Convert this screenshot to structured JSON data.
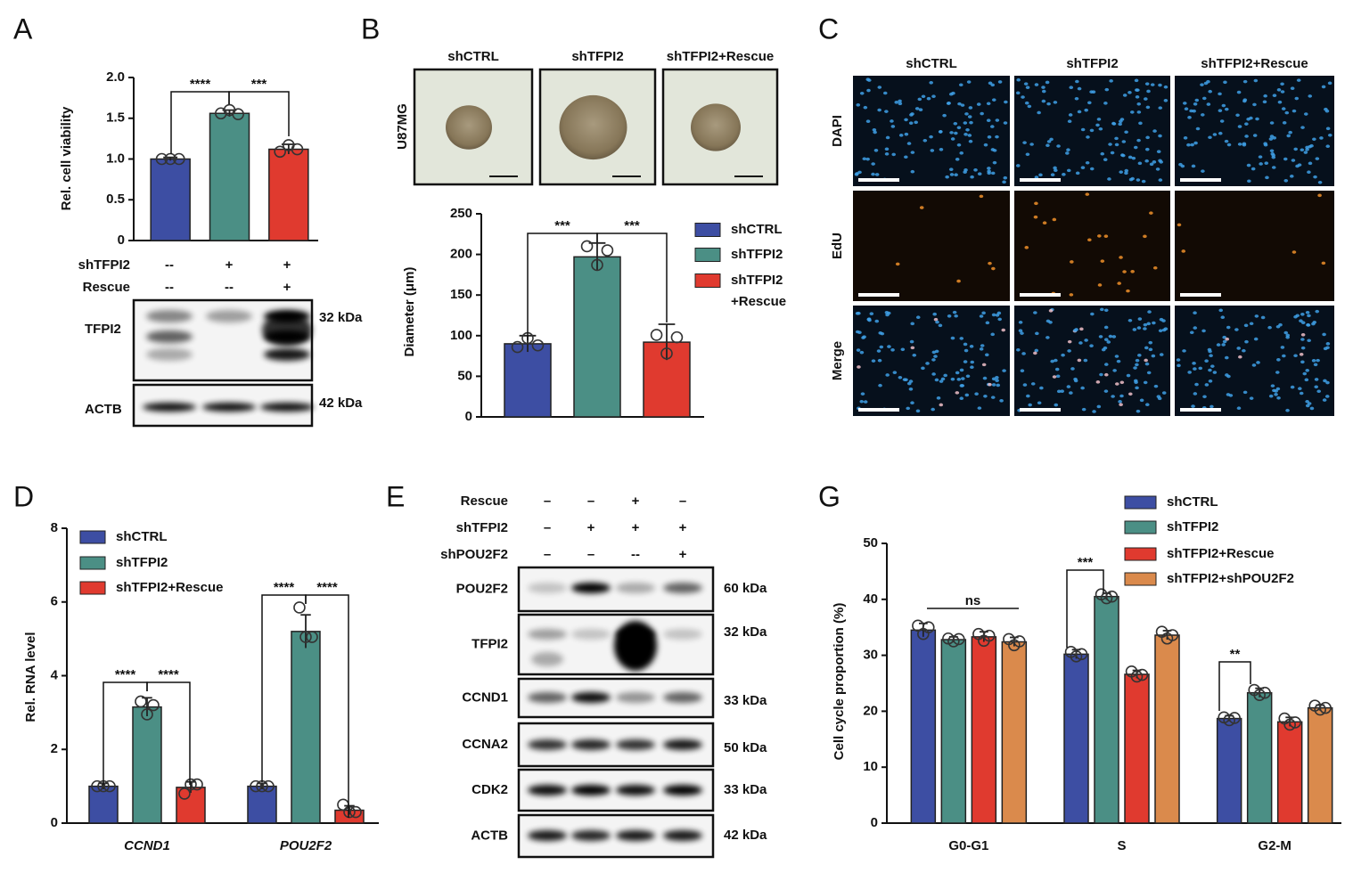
{
  "panel_labels": [
    "A",
    "B",
    "C",
    "D",
    "E",
    "G"
  ],
  "chart_data": [
    {
      "type": "bar",
      "ylabel": "Rel. cell viability",
      "categories": [
        null,
        null,
        null
      ],
      "values": [
        1.0,
        1.56,
        1.12
      ],
      "errors": [
        0.02,
        0.04,
        0.06
      ],
      "points": [
        [
          1.0,
          1.0,
          1.0
        ],
        [
          1.56,
          1.6,
          1.55
        ],
        [
          1.09,
          1.17,
          1.12
        ]
      ],
      "colors": [
        "#3d4ea3",
        "#4b8f85",
        "#e03a2f"
      ],
      "ylim": [
        0,
        2
      ],
      "yticks": [
        0,
        0.5,
        {
          "value": 1,
          "label": "1.0"
        },
        1.5,
        {
          "value": 2,
          "label": "2.0"
        }
      ],
      "annotations": [
        "****",
        "***"
      ]
    },
    {
      "type": "bar",
      "ylabel": "Diameter (μm)",
      "categories": [
        null
      ],
      "series": [
        {
          "name": "shCTRL",
          "color": "#3d4ea3",
          "values": [
            90
          ],
          "errors": [
            10
          ],
          "points": [
            [
              86,
              97,
              88
            ]
          ]
        },
        {
          "name": "shTFPI2",
          "color": "#4b8f85",
          "values": [
            197
          ],
          "errors": [
            17
          ],
          "points": [
            [
              210,
              187,
              205
            ]
          ]
        },
        {
          "name": "shTFPI2+Rescue",
          "color": "#e03a2f",
          "values": [
            92
          ],
          "errors": [
            22
          ],
          "points": [
            [
              101,
              78,
              98
            ]
          ]
        }
      ],
      "ylim": [
        0,
        250
      ],
      "yticks": [
        0,
        50,
        100,
        150,
        200,
        250
      ],
      "annotations": [
        "***",
        "***"
      ]
    },
    {
      "type": "bar",
      "ylabel": "Rel. RNA level",
      "categories": [
        "CCND1",
        "POU2F2"
      ],
      "series": [
        {
          "name": "shCTRL",
          "color": "#3d4ea3",
          "values": [
            1.0,
            1.0
          ],
          "errors": [
            0.08,
            0.08
          ],
          "points": [
            [
              1.0,
              1.0,
              1.0
            ],
            [
              1.0,
              1.0,
              1.0
            ]
          ]
        },
        {
          "name": "shTFPI2",
          "color": "#4b8f85",
          "values": [
            3.15,
            5.2
          ],
          "errors": [
            0.25,
            0.45
          ],
          "points": [
            [
              3.3,
              2.95,
              3.2
            ],
            [
              5.85,
              5.05,
              5.05
            ]
          ]
        },
        {
          "name": "shTFPI2+Rescue",
          "color": "#e03a2f",
          "values": [
            0.97,
            0.35
          ],
          "errors": [
            0.15,
            0.12
          ],
          "points": [
            [
              0.8,
              1.05,
              1.05
            ],
            [
              0.5,
              0.3,
              0.3
            ]
          ]
        }
      ],
      "ylim": [
        0,
        8
      ],
      "yticks": [
        0,
        2,
        4,
        6,
        8
      ],
      "annotations": [
        "****",
        "****",
        "****",
        "****"
      ]
    },
    {
      "type": "bar",
      "ylabel": "Cell cycle proportion (%)",
      "categories": [
        "G0-G1",
        "S",
        "G2-M"
      ],
      "series": [
        {
          "name": "shCTRL",
          "color": "#3d4ea3",
          "values": [
            34.5,
            30.2,
            18.7
          ],
          "errors": [
            1.2,
            0.8,
            0.5
          ],
          "points": [
            [
              35.3,
              33.8,
              35.0
            ],
            [
              30.6,
              29.8,
              30.2
            ],
            [
              18.9,
              18.4,
              18.8
            ]
          ]
        },
        {
          "name": "shTFPI2",
          "color": "#4b8f85",
          "values": [
            32.8,
            40.5,
            23.3
          ],
          "errors": [
            0.5,
            0.6,
            0.8
          ],
          "points": [
            [
              33.0,
              32.5,
              32.9
            ],
            [
              40.9,
              40.2,
              40.5
            ],
            [
              23.8,
              22.9,
              23.3
            ]
          ]
        },
        {
          "name": "shTFPI2+Rescue",
          "color": "#e03a2f",
          "values": [
            33.3,
            26.6,
            18.1
          ],
          "errors": [
            0.9,
            0.7,
            0.8
          ],
          "points": [
            [
              33.8,
              32.6,
              33.5
            ],
            [
              27.1,
              26.2,
              26.5
            ],
            [
              18.7,
              17.6,
              18.0
            ]
          ]
        },
        {
          "name": "shTFPI2+shPOU2F2",
          "color": "#da8a4c",
          "values": [
            32.4,
            33.6,
            20.6
          ],
          "errors": [
            0.8,
            0.8,
            0.5
          ],
          "points": [
            [
              32.9,
              31.8,
              32.5
            ],
            [
              34.2,
              33.0,
              33.6
            ],
            [
              21.0,
              20.3,
              20.6
            ]
          ]
        }
      ],
      "ylim": [
        0,
        50
      ],
      "yticks": [
        0,
        10,
        20,
        30,
        40,
        50
      ],
      "annotations": [
        "ns",
        "***",
        "**"
      ]
    }
  ],
  "panel_A": {
    "conditions": [
      {
        "label": "shTFPI2",
        "marks": [
          "--",
          "+",
          "+"
        ]
      },
      {
        "label": "Rescue",
        "marks": [
          "--",
          "--",
          "+"
        ]
      }
    ],
    "blots": [
      {
        "label": "TFPI2",
        "size": "32 kDa"
      },
      {
        "label": "ACTB",
        "size": "42 kDa"
      }
    ]
  },
  "panel_B": {
    "columns": [
      "shCTRL",
      "shTFPI2",
      "shTFPI2+Rescue"
    ],
    "row": "U87MG"
  },
  "panel_C": {
    "columns": [
      "shCTRL",
      "shTFPI2",
      "shTFPI2+Rescue"
    ],
    "rows": [
      "DAPI",
      "EdU",
      "Merge"
    ]
  },
  "panel_E": {
    "conditions": [
      {
        "label": "Rescue",
        "marks": [
          "–",
          "–",
          "+",
          "–"
        ]
      },
      {
        "label": "shTFPI2",
        "marks": [
          "–",
          "+",
          "+",
          "+"
        ]
      },
      {
        "label": "shPOU2F2",
        "marks": [
          "–",
          "–",
          "--",
          "+"
        ]
      }
    ],
    "blots": [
      {
        "label": "POU2F2",
        "size": "60 kDa"
      },
      {
        "label": "TFPI2",
        "size": "32 kDa"
      },
      {
        "label": "CCND1",
        "size": "33 kDa"
      },
      {
        "label": "CCNA2",
        "size": "50 kDa"
      },
      {
        "label": "CDK2",
        "size": "33 kDa"
      },
      {
        "label": "ACTB",
        "size": "42 kDa"
      }
    ]
  }
}
